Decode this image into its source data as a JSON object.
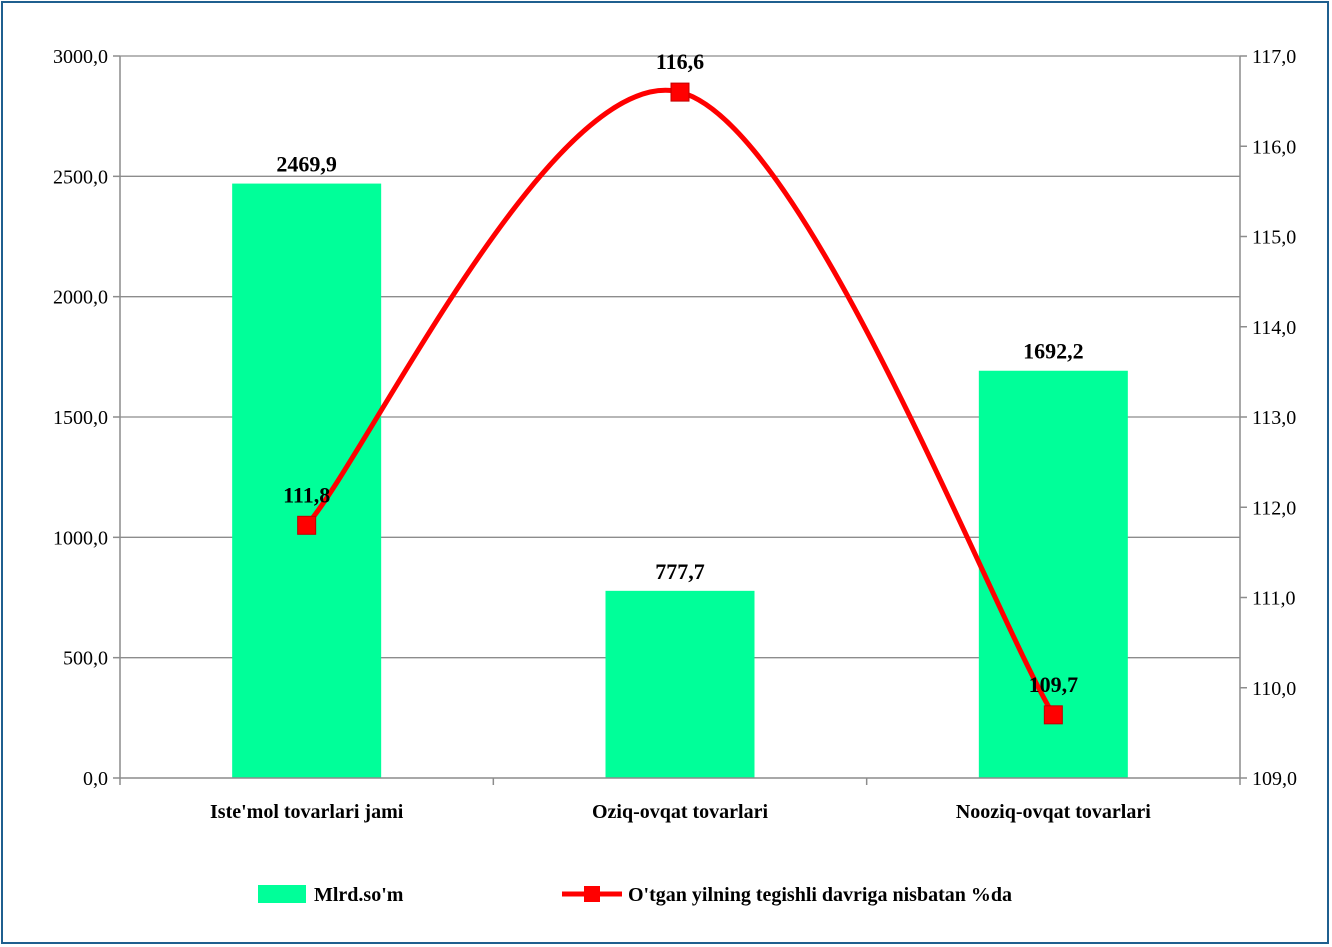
{
  "chart_data": {
    "type": "bar+line",
    "categories": [
      "Iste'mol tovarlari jami",
      "Oziq-ovqat tovarlari",
      "Nooziq-ovqat tovarlari"
    ],
    "series": [
      {
        "name": "Mlrd.so'm",
        "type": "bar",
        "axis": "left",
        "color": "#00ff99",
        "values": [
          2469.9,
          777.7,
          1692.2
        ],
        "labels": [
          "2469,9",
          "777,7",
          "1692,2"
        ]
      },
      {
        "name": "O'tgan yilning tegishli davriga nisbatan %da",
        "type": "line",
        "axis": "right",
        "color": "#ff0000",
        "marker": "square",
        "values": [
          111.8,
          116.6,
          109.7
        ],
        "labels": [
          "111,8",
          "116,6",
          "109,7"
        ]
      }
    ],
    "left_axis": {
      "ylim": [
        0,
        3000
      ],
      "ticks": [
        0,
        500,
        1000,
        1500,
        2000,
        2500,
        3000
      ],
      "tick_labels": [
        "0,0",
        "500,0",
        "1000,0",
        "1500,0",
        "2000,0",
        "2500,0",
        "3000,0"
      ]
    },
    "right_axis": {
      "ylim": [
        109,
        117
      ],
      "ticks": [
        109,
        110,
        111,
        112,
        113,
        114,
        115,
        116,
        117
      ],
      "tick_labels": [
        "109,0",
        "110,0",
        "111,0",
        "112,0",
        "113,0",
        "114,0",
        "115,0",
        "116,0",
        "117,0"
      ]
    },
    "grid": true,
    "legend_position": "bottom"
  }
}
